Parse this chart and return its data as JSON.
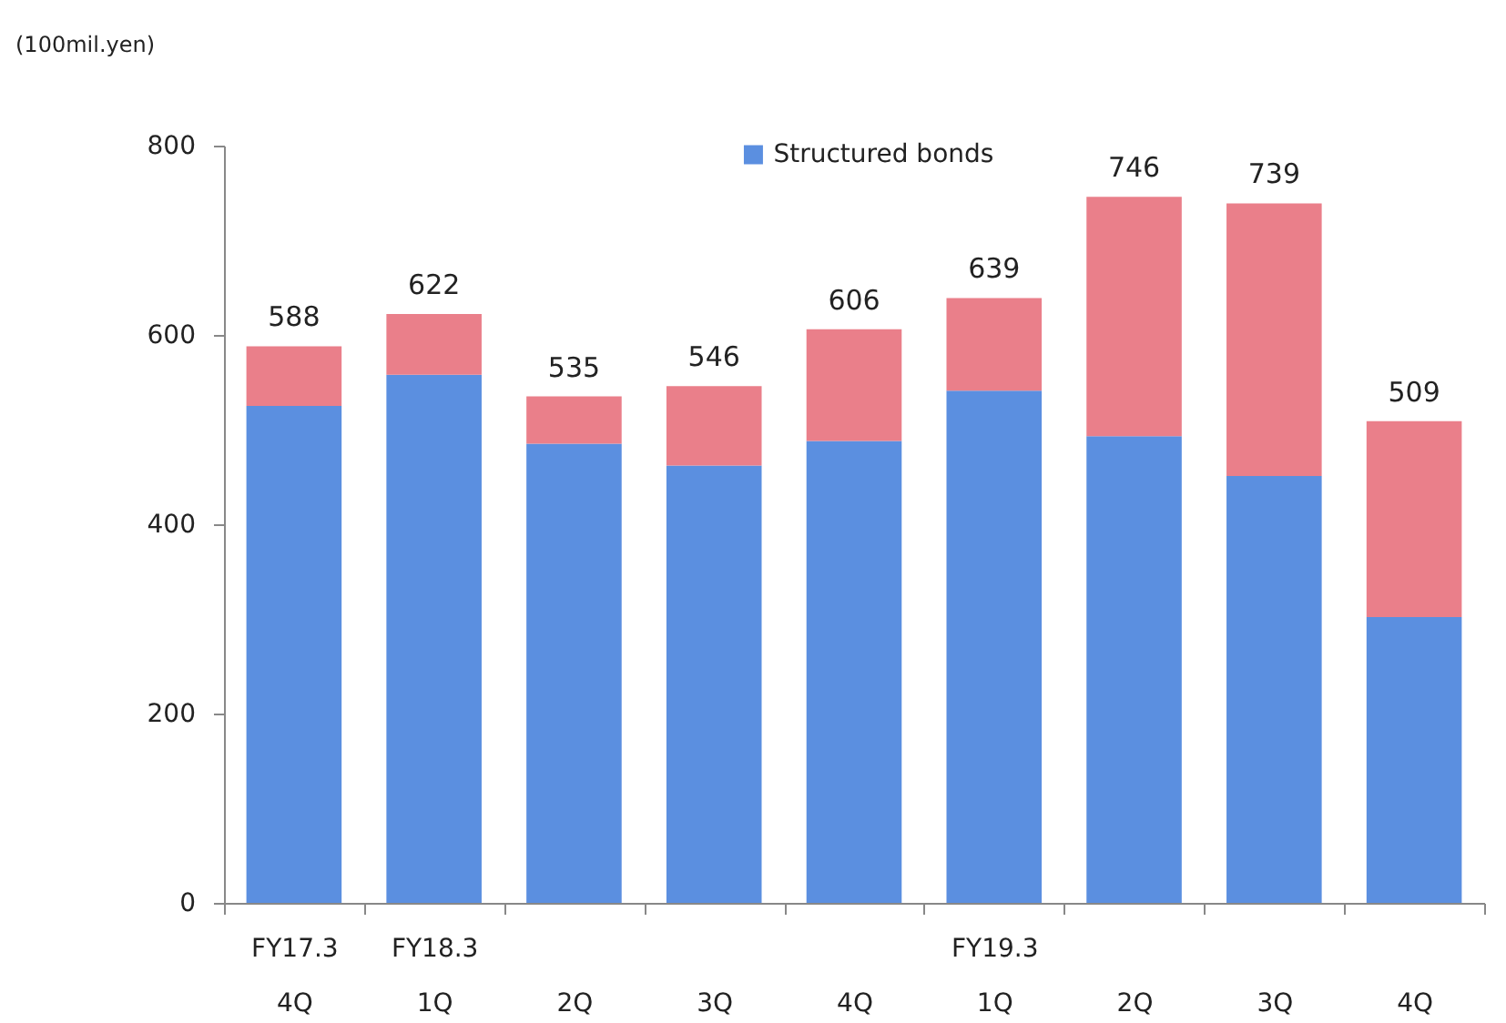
{
  "chart_data": {
    "type": "bar",
    "stacked": true,
    "ylabel": "(100mil.yen)",
    "categories": [
      "FY17.3\n4Q",
      "FY18.3\n1Q",
      "2Q",
      "3Q",
      "4Q",
      "FY19.3\n1Q",
      "2Q",
      "3Q",
      "4Q"
    ],
    "series": [
      {
        "name": "Structured bonds",
        "color": "#5b8fe0",
        "values": [
          525,
          558,
          485,
          462,
          488,
          541,
          493,
          451,
          302
        ]
      },
      {
        "color": "#ea7f8a",
        "values": [
          63,
          64,
          50,
          84,
          118,
          98,
          253,
          288,
          207
        ]
      }
    ],
    "totals": [
      "588",
      "622",
      "535",
      "546",
      "606",
      "639",
      "746",
      "739",
      "509"
    ],
    "ylim": [
      0,
      800
    ],
    "yticks": [
      0,
      200,
      400,
      600,
      800
    ],
    "legend": "top"
  }
}
